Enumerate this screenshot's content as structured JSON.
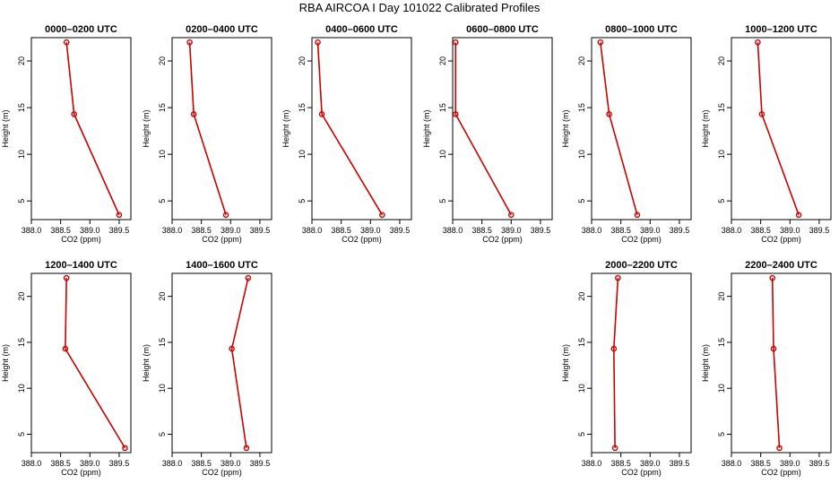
{
  "title": "RBA AIRCOA I  Day 101022  Calibrated Profiles",
  "chart_data": {
    "type": "line",
    "title": "RBA AIRCOA I  Day 101022  Calibrated Profiles",
    "xlabel": "CO2 (ppm)",
    "ylabel": "Height (m)",
    "xlim": [
      388.0,
      389.7
    ],
    "ylim": [
      3,
      22.5
    ],
    "xticks": [
      "388.0",
      "388.5",
      "389.0",
      "389.5"
    ],
    "yticks": [
      "5",
      "10",
      "15",
      "20"
    ],
    "line_color": "#cc0000",
    "panels": [
      {
        "title": "0000–0200 UTC",
        "heights": [
          22,
          14.3,
          3.5
        ],
        "co2": [
          388.6,
          388.73,
          389.5
        ]
      },
      {
        "title": "0200–0400 UTC",
        "heights": [
          22,
          14.3,
          3.5
        ],
        "co2": [
          388.3,
          388.37,
          388.92
        ]
      },
      {
        "title": "0400–0600 UTC",
        "heights": [
          22,
          14.3,
          3.5
        ],
        "co2": [
          388.1,
          388.17,
          389.2
        ]
      },
      {
        "title": "0600–0800 UTC",
        "heights": [
          22,
          14.3,
          3.5
        ],
        "co2": [
          388.05,
          388.05,
          389.0
        ]
      },
      {
        "title": "0800–1000 UTC",
        "heights": [
          22,
          14.3,
          3.5
        ],
        "co2": [
          388.15,
          388.3,
          388.78
        ]
      },
      {
        "title": "1000–1200 UTC",
        "heights": [
          22,
          14.3,
          3.5
        ],
        "co2": [
          388.45,
          388.52,
          389.15
        ]
      },
      {
        "title": "1200–1400 UTC",
        "heights": [
          22,
          14.3,
          3.5
        ],
        "co2": [
          388.6,
          388.58,
          389.6
        ]
      },
      {
        "title": "1400–1600 UTC",
        "heights": [
          22,
          14.3,
          3.5
        ],
        "co2": [
          389.3,
          389.02,
          389.27
        ]
      },
      {
        "title": "",
        "heights": [],
        "co2": []
      },
      {
        "title": "",
        "heights": [],
        "co2": []
      },
      {
        "title": "2000–2200 UTC",
        "heights": [
          22,
          14.3,
          3.5
        ],
        "co2": [
          388.45,
          388.38,
          388.4
        ]
      },
      {
        "title": "2200–2400 UTC",
        "heights": [
          22,
          14.3,
          3.5
        ],
        "co2": [
          388.7,
          388.72,
          388.82
        ]
      }
    ]
  }
}
